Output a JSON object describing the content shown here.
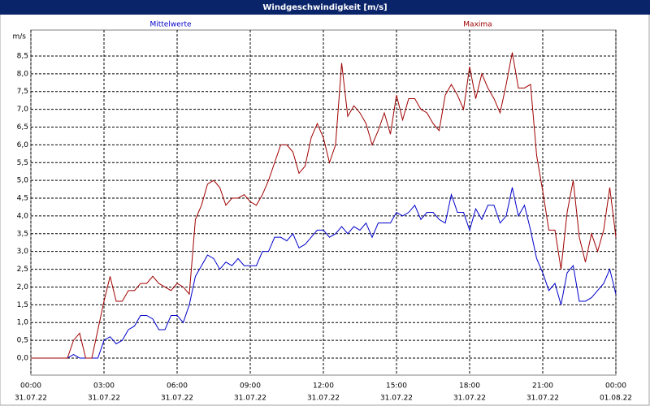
{
  "chart_data": {
    "type": "line",
    "title": "Windgeschwindigkeit [m/s]",
    "y_label": "m/s",
    "x": [
      0,
      0.25,
      0.5,
      0.75,
      1,
      1.25,
      1.5,
      1.75,
      2,
      2.25,
      2.5,
      2.75,
      3,
      3.25,
      3.5,
      3.75,
      4,
      4.25,
      4.5,
      4.75,
      5,
      5.25,
      5.5,
      5.75,
      6,
      6.25,
      6.5,
      6.75,
      7,
      7.25,
      7.5,
      7.75,
      8,
      8.25,
      8.5,
      8.75,
      9,
      9.25,
      9.5,
      9.75,
      10,
      10.25,
      10.5,
      10.75,
      11,
      11.25,
      11.5,
      11.75,
      12,
      12.25,
      12.5,
      12.75,
      13,
      13.25,
      13.5,
      13.75,
      14,
      14.25,
      14.5,
      14.75,
      15,
      15.25,
      15.5,
      15.75,
      16,
      16.25,
      16.5,
      16.75,
      17,
      17.25,
      17.5,
      17.75,
      18,
      18.25,
      18.5,
      18.75,
      19,
      19.25,
      19.5,
      19.75,
      20,
      20.25,
      20.5,
      20.75,
      21,
      21.25,
      21.5,
      21.75,
      22,
      22.25,
      22.5,
      22.75,
      23,
      23.25,
      23.5,
      23.75,
      24
    ],
    "series": [
      {
        "name": "Mittelwerte",
        "color": "#0000cc",
        "values": [
          0,
          0,
          0,
          0,
          0,
          0,
          0,
          0.1,
          0,
          0,
          0,
          0,
          0.5,
          0.6,
          0.4,
          0.5,
          0.8,
          0.9,
          1.2,
          1.2,
          1.1,
          0.8,
          0.8,
          1.2,
          1.2,
          1.0,
          1.5,
          2.3,
          2.6,
          2.9,
          2.8,
          2.5,
          2.7,
          2.6,
          2.8,
          2.6,
          2.6,
          2.6,
          3.0,
          3.0,
          3.4,
          3.4,
          3.3,
          3.5,
          3.1,
          3.2,
          3.4,
          3.6,
          3.6,
          3.4,
          3.5,
          3.7,
          3.5,
          3.7,
          3.6,
          3.8,
          3.4,
          3.8,
          3.8,
          3.8,
          4.1,
          4.0,
          4.1,
          4.3,
          3.9,
          4.1,
          4.1,
          3.9,
          3.8,
          4.6,
          4.1,
          4.1,
          3.6,
          4.2,
          3.9,
          4.3,
          4.3,
          3.8,
          4.0,
          4.8,
          4.0,
          4.3,
          3.6,
          2.8,
          2.4,
          1.9,
          2.1,
          1.5,
          2.4,
          2.6,
          1.6,
          1.6,
          1.7,
          1.9,
          2.1,
          2.5,
          1.8
        ]
      },
      {
        "name": "Maxima",
        "color": "#a00000",
        "values": [
          0,
          0,
          0,
          0,
          0,
          0,
          0,
          0.5,
          0.7,
          0,
          0,
          0.8,
          1.6,
          2.3,
          1.6,
          1.6,
          1.9,
          1.9,
          2.1,
          2.1,
          2.3,
          2.1,
          2.0,
          1.9,
          2.1,
          2.0,
          1.8,
          3.9,
          4.3,
          4.9,
          5.0,
          4.8,
          4.3,
          4.5,
          4.5,
          4.6,
          4.4,
          4.3,
          4.6,
          5.0,
          5.5,
          6.0,
          6.0,
          5.8,
          5.2,
          5.4,
          6.2,
          6.6,
          6.2,
          5.5,
          6.0,
          8.3,
          6.8,
          7.1,
          6.9,
          6.6,
          6.0,
          6.4,
          6.9,
          6.3,
          7.4,
          6.7,
          7.3,
          7.3,
          7.0,
          6.9,
          6.6,
          6.4,
          7.4,
          7.7,
          7.4,
          7.0,
          8.2,
          7.3,
          8.0,
          7.6,
          7.3,
          6.9,
          7.7,
          8.6,
          7.6,
          7.6,
          7.7,
          5.7,
          4.7,
          3.6,
          3.6,
          2.5,
          4.1,
          5.0,
          3.4,
          2.7,
          3.5,
          3.0,
          3.6,
          4.8,
          3.4
        ]
      }
    ],
    "xlim": [
      0,
      24
    ],
    "xticks": [
      {
        "value": 0,
        "label": [
          "00:00",
          "31.07.22"
        ]
      },
      {
        "value": 3,
        "label": [
          "03:00",
          "31.07.22"
        ]
      },
      {
        "value": 6,
        "label": [
          "06:00",
          "31.07.22"
        ]
      },
      {
        "value": 9,
        "label": [
          "09:00",
          "31.07.22"
        ]
      },
      {
        "value": 12,
        "label": [
          "12:00",
          "31.07.22"
        ]
      },
      {
        "value": 15,
        "label": [
          "15:00",
          "31.07.22"
        ]
      },
      {
        "value": 18,
        "label": [
          "18:00",
          "31.07.22"
        ]
      },
      {
        "value": 21,
        "label": [
          "21:00",
          "31.07.22"
        ]
      },
      {
        "value": 24,
        "label": [
          "00:00",
          "01.08.22"
        ]
      }
    ],
    "ylim": [
      -0.48,
      9.23
    ],
    "yticks": [
      {
        "value": 0,
        "label": "0,0"
      },
      {
        "value": 0.5,
        "label": "0,5"
      },
      {
        "value": 1,
        "label": "1,0"
      },
      {
        "value": 1.5,
        "label": "1,5"
      },
      {
        "value": 2,
        "label": "2,0"
      },
      {
        "value": 2.5,
        "label": "2,5"
      },
      {
        "value": 3,
        "label": "3,0"
      },
      {
        "value": 3.5,
        "label": "3,5"
      },
      {
        "value": 4,
        "label": "4,0"
      },
      {
        "value": 4.5,
        "label": "4,5"
      },
      {
        "value": 5,
        "label": "5,0"
      },
      {
        "value": 5.5,
        "label": "5,5"
      },
      {
        "value": 6,
        "label": "6,0"
      },
      {
        "value": 6.5,
        "label": "6,5"
      },
      {
        "value": 7,
        "label": "7,0"
      },
      {
        "value": 7.5,
        "label": "7,5"
      },
      {
        "value": 8,
        "label": "8,0"
      },
      {
        "value": 8.5,
        "label": "8,5"
      }
    ],
    "grid": true
  }
}
